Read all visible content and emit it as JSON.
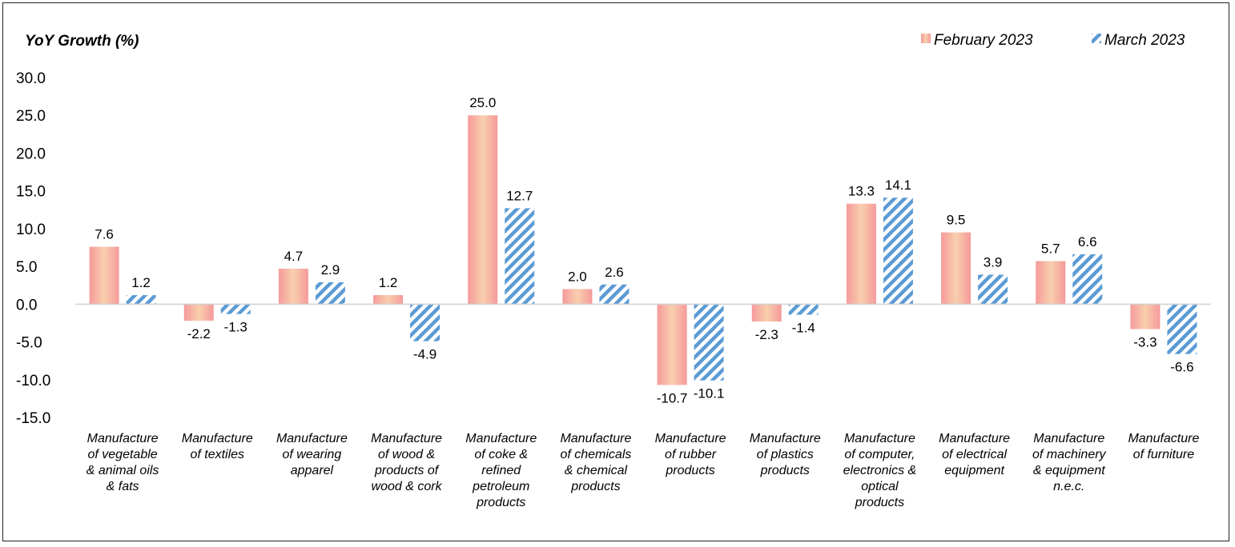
{
  "chart_data": {
    "type": "bar",
    "title": "YoY Growth (%)",
    "xlabel": "",
    "ylabel": "",
    "ylim": [
      -15,
      30
    ],
    "yticks": [
      "30.0",
      "25.0",
      "20.0",
      "15.0",
      "10.0",
      "5.0",
      "0.0",
      "-5.0",
      "-10.0",
      "-15.0"
    ],
    "grid": false,
    "legend_position": "top-right",
    "categories": [
      [
        "Manufacture",
        "of vegetable",
        "& animal oils",
        "& fats"
      ],
      [
        "Manufacture",
        "of textiles"
      ],
      [
        "Manufacture",
        "of wearing",
        "apparel"
      ],
      [
        "Manufacture",
        "of wood &",
        "products of",
        "wood & cork"
      ],
      [
        "Manufacture",
        "of coke &",
        "refined",
        "petroleum",
        "products"
      ],
      [
        "Manufacture",
        "of chemicals",
        "& chemical",
        "products"
      ],
      [
        "Manufacture",
        "of rubber",
        "products"
      ],
      [
        "Manufacture",
        "of plastics",
        "products"
      ],
      [
        "Manufacture",
        "of computer,",
        "electronics &",
        "optical",
        "products"
      ],
      [
        "Manufacture",
        "of electrical",
        "equipment"
      ],
      [
        "Manufacture",
        "of machinery",
        "& equipment",
        "n.e.c."
      ],
      [
        "Manufacture",
        "of furniture"
      ]
    ],
    "series": [
      {
        "name": "February 2023",
        "color": "#f4a6a6",
        "values": [
          7.6,
          -2.2,
          4.7,
          1.2,
          25.0,
          2.0,
          -10.7,
          -2.3,
          13.3,
          9.5,
          5.7,
          -3.3
        ],
        "labels": [
          "7.6",
          "-2.2",
          "4.7",
          "1.2",
          "25.0",
          "2.0",
          "-10.7",
          "-2.3",
          "13.3",
          "9.5",
          "5.7",
          "-3.3"
        ]
      },
      {
        "name": "March 2023",
        "color": "#5b9bd5",
        "values": [
          1.2,
          -1.3,
          2.9,
          -4.9,
          12.7,
          2.6,
          -10.1,
          -1.4,
          14.1,
          3.9,
          6.6,
          -6.6
        ],
        "labels": [
          "1.2",
          "-1.3",
          "2.9",
          "-4.9",
          "12.7",
          "2.6",
          "-10.1",
          "-1.4",
          "14.1",
          "3.9",
          "6.6",
          "-6.6"
        ]
      }
    ]
  }
}
